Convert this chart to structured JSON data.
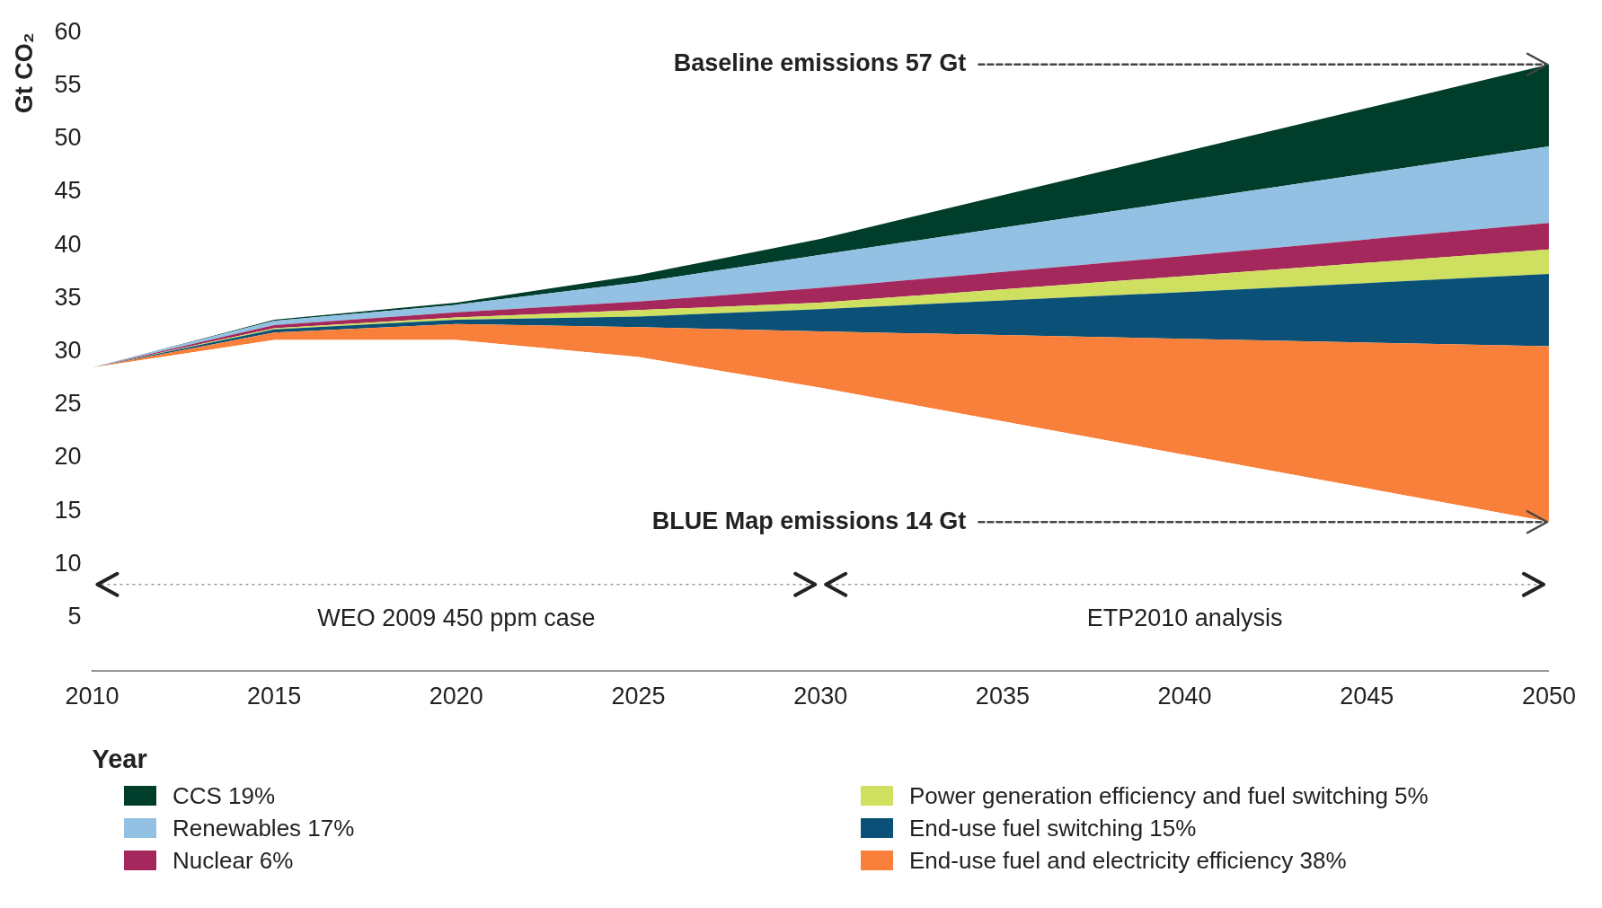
{
  "chart_data": {
    "type": "area",
    "stacked": true,
    "xlabel": "Year",
    "ylabel": "Gt CO₂",
    "x": [
      2010,
      2015,
      2020,
      2025,
      2030,
      2040,
      2050
    ],
    "series": [
      {
        "color": "#ffffff",
        "values": [
          28.5,
          31.1,
          31.1,
          29.5,
          26.6,
          20.3,
          14
        ]
      },
      {
        "name": "End-use fuel and electricity efficiency 38%",
        "color": "#f8803a",
        "values": [
          0,
          0.7,
          1.5,
          2.8,
          5.3,
          10.9,
          16.5
        ]
      },
      {
        "name": "End-use fuel switching 15%",
        "color": "#0b5177",
        "values": [
          0,
          0.3,
          0.4,
          1.0,
          2.1,
          4.4,
          6.8
        ]
      },
      {
        "name": "Power generation efficiency and fuel switching 5%",
        "color": "#cfe060",
        "values": [
          0,
          0.1,
          0.2,
          0.6,
          0.6,
          1.5,
          2.3
        ]
      },
      {
        "name": "Nuclear 6%",
        "color": "#a5285d",
        "values": [
          0,
          0.3,
          0.5,
          0.8,
          1.4,
          1.9,
          2.5
        ]
      },
      {
        "name": "Renewables 17%",
        "color": "#92c1e3",
        "values": [
          0,
          0.4,
          0.7,
          1.8,
          3.1,
          5.2,
          7.2
        ]
      },
      {
        "name": "CCS 19%",
        "color": "#003d2b",
        "values": [
          0,
          0.1,
          0.2,
          0.7,
          1.5,
          4.6,
          7.7
        ]
      }
    ],
    "xlim": [
      2010,
      2050
    ],
    "xticks": [
      2010,
      2015,
      2020,
      2025,
      2030,
      2035,
      2040,
      2045,
      2050
    ],
    "ylim": [
      0,
      60
    ],
    "yticks": [
      {
        "value": 0,
        "label": null
      },
      5,
      10,
      15,
      20,
      25,
      30,
      35,
      40,
      45,
      50,
      55,
      60
    ],
    "annotations": [
      "Baseline emissions 57 Gt",
      "BLUE Map emissions 14 Gt",
      "WEO 2009 450 ppm case",
      "ETP2010 analysis"
    ],
    "legend": "bottom"
  }
}
